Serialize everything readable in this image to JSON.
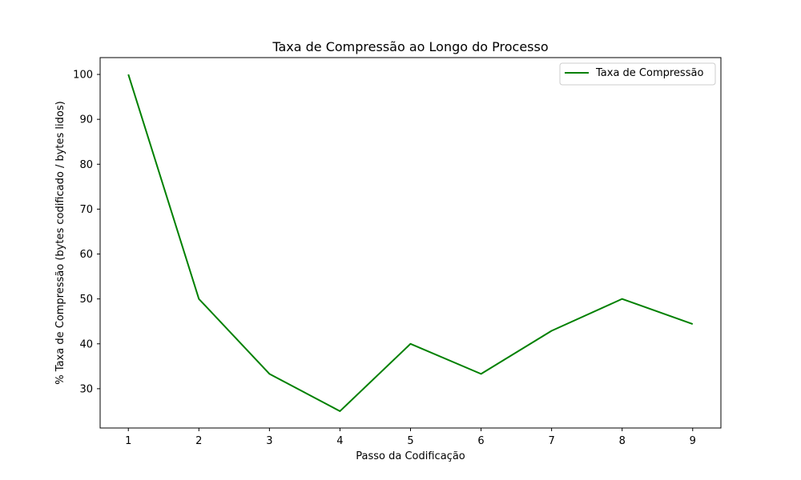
{
  "chart_data": {
    "type": "line",
    "title": "Taxa de Compressão ao Longo do Processo",
    "xlabel": "Passo da Codificação",
    "ylabel": "% Taxa de Compressão (bytes codificado / bytes lidos)",
    "x": [
      1,
      2,
      3,
      4,
      5,
      6,
      7,
      8,
      9
    ],
    "series": [
      {
        "name": "Taxa de Compressão",
        "color": "#008000",
        "values": [
          100,
          50,
          33.3,
          25,
          40,
          33.3,
          42.9,
          50,
          44.4
        ]
      }
    ],
    "xticks": [
      "1",
      "2",
      "3",
      "4",
      "5",
      "6",
      "7",
      "8",
      "9"
    ],
    "yticks": [
      "30",
      "40",
      "50",
      "60",
      "70",
      "80",
      "90",
      "100"
    ],
    "xlim": [
      0.6,
      9.4
    ],
    "ylim": [
      21.25,
      103.75
    ],
    "grid": false,
    "legend_position": "top-right"
  }
}
